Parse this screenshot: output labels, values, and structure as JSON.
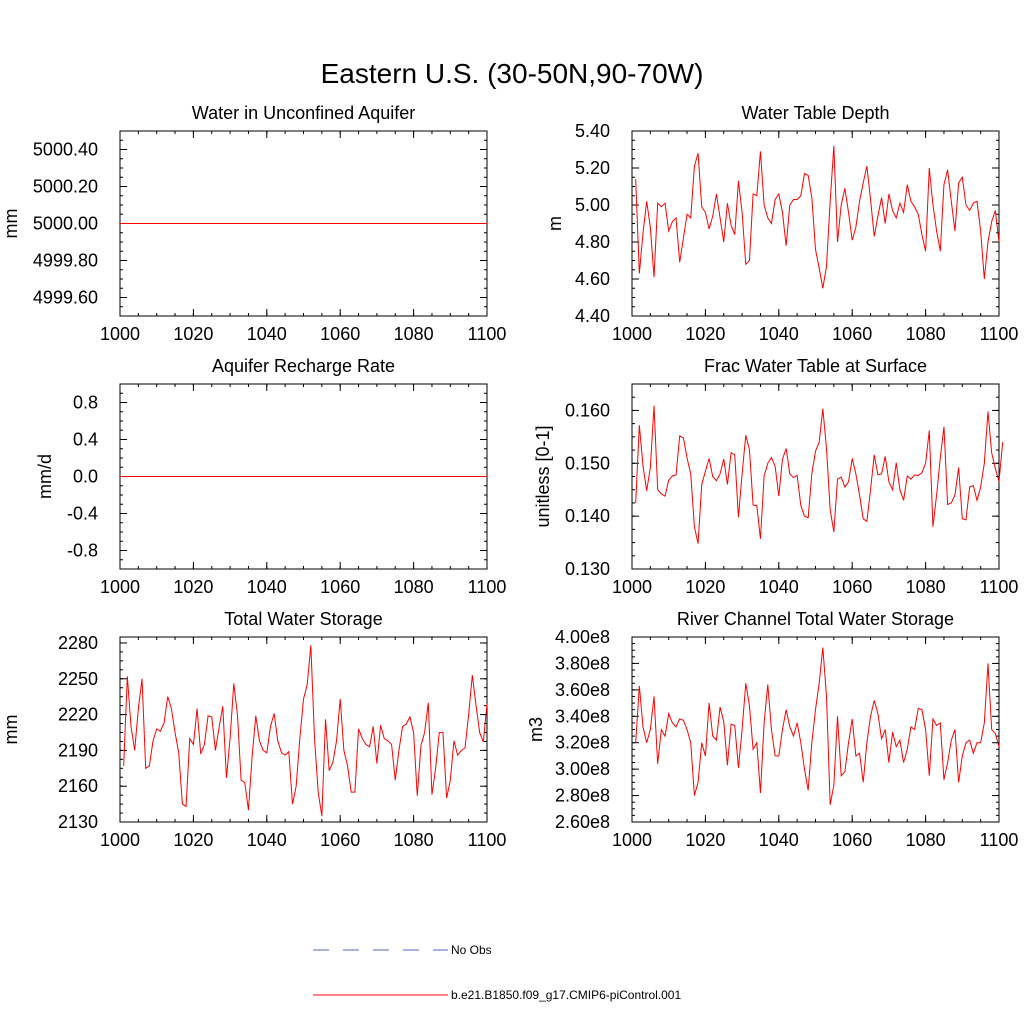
{
  "figure": {
    "title": "Eastern U.S. (30-50N,90-70W)"
  },
  "legend": {
    "placement": "bottom-center",
    "entries": [
      {
        "label": "No Obs",
        "color": "#5566cc",
        "style": "dashed"
      },
      {
        "label": "b.e21.B1850.f09_g17.CMIP6-piControl.001",
        "color": "#ff0000",
        "style": "solid"
      }
    ]
  },
  "chart_data": [
    {
      "type": "line",
      "title": "Water in Unconfined Aquifer",
      "ylabel": "mm",
      "xlim": [
        1000,
        1100
      ],
      "ylim": [
        4999.5,
        5000.5
      ],
      "xticks": [
        1000,
        1020,
        1040,
        1060,
        1080,
        1100
      ],
      "xtick_labels": [
        "1000",
        "1020",
        "1040",
        "1060",
        "1080",
        "1100"
      ],
      "yticks": [
        4999.6,
        4999.8,
        5000.0,
        5000.2,
        5000.4
      ],
      "ytick_labels": [
        "4999.60",
        "4999.80",
        "5000.00",
        "5000.20",
        "5000.40"
      ],
      "series": [
        {
          "color": "#ff0000",
          "x_start": 1001,
          "x_step": 1,
          "constant": 5000.0,
          "count": 100
        }
      ]
    },
    {
      "type": "line",
      "title": "Water Table Depth",
      "ylabel": "m",
      "xlim": [
        1000,
        1100
      ],
      "ylim": [
        4.4,
        5.4
      ],
      "xticks": [
        1000,
        1020,
        1040,
        1060,
        1080,
        1100
      ],
      "xtick_labels": [
        "1000",
        "1020",
        "1040",
        "1060",
        "1080",
        "1100"
      ],
      "yticks": [
        4.4,
        4.6,
        4.8,
        5.0,
        5.2,
        5.4
      ],
      "ytick_labels": [
        "4.40",
        "4.60",
        "4.80",
        "5.00",
        "5.20",
        "5.40"
      ],
      "series": [
        {
          "color": "#ff0000",
          "x_start": 1001,
          "x_step": 1,
          "values": [
            5.14,
            4.63,
            4.85,
            5.02,
            4.88,
            4.61,
            5.01,
            4.99,
            5.01,
            4.86,
            4.91,
            4.93,
            4.69,
            4.82,
            4.95,
            4.93,
            5.21,
            5.28,
            4.99,
            4.96,
            4.87,
            4.94,
            5.06,
            4.93,
            4.8,
            5.01,
            4.89,
            4.84,
            5.13,
            4.96,
            4.68,
            4.7,
            5.06,
            5.05,
            5.29,
            5.0,
            4.93,
            4.9,
            5.03,
            5.06,
            4.96,
            4.78,
            5.0,
            5.03,
            5.03,
            5.05,
            5.17,
            5.16,
            5.04,
            4.76,
            4.66,
            4.55,
            4.67,
            5.02,
            5.32,
            4.8,
            5.0,
            5.09,
            4.96,
            4.81,
            4.88,
            5.02,
            5.12,
            5.21,
            5.03,
            4.83,
            4.94,
            5.04,
            4.9,
            5.06,
            4.97,
            4.93,
            5.01,
            4.96,
            5.11,
            5.02,
            4.99,
            4.95,
            4.84,
            4.75,
            5.2,
            5.0,
            4.86,
            4.75,
            5.11,
            5.19,
            5.02,
            4.86,
            5.12,
            5.15,
            5.0,
            4.97,
            5.01,
            5.02,
            4.86,
            4.6,
            4.8,
            4.91,
            4.97,
            4.8
          ]
        }
      ]
    },
    {
      "type": "line",
      "title": "Aquifer Recharge Rate",
      "ylabel": "mm/d",
      "xlim": [
        1000,
        1100
      ],
      "ylim": [
        -1.0,
        1.0
      ],
      "xticks": [
        1000,
        1020,
        1040,
        1060,
        1080,
        1100
      ],
      "xtick_labels": [
        "1000",
        "1020",
        "1040",
        "1060",
        "1080",
        "1100"
      ],
      "yticks": [
        -0.8,
        -0.4,
        0.0,
        0.4,
        0.8
      ],
      "ytick_labels": [
        "-0.8",
        "-0.4",
        "0.0",
        "0.4",
        "0.8"
      ],
      "series": [
        {
          "color": "#ff0000",
          "x_start": 1001,
          "x_step": 1,
          "constant": 0.0,
          "count": 100
        }
      ]
    },
    {
      "type": "line",
      "title": "Frac Water Table at Surface",
      "ylabel": "unitless [0-1]",
      "xlim": [
        1000,
        1100
      ],
      "ylim": [
        0.13,
        0.165
      ],
      "xticks": [
        1000,
        1020,
        1040,
        1060,
        1080,
        1100
      ],
      "xtick_labels": [
        "1000",
        "1020",
        "1040",
        "1060",
        "1080",
        "1100"
      ],
      "yticks": [
        0.13,
        0.14,
        0.15,
        0.16
      ],
      "ytick_labels": [
        "0.130",
        "0.140",
        "0.150",
        "0.160"
      ],
      "series": [
        {
          "color": "#ff0000",
          "x_start": 1001,
          "x_step": 1,
          "values": [
            0.1425,
            0.1572,
            0.1495,
            0.1448,
            0.1492,
            0.1609,
            0.145,
            0.1442,
            0.1438,
            0.1468,
            0.1476,
            0.1478,
            0.1552,
            0.1548,
            0.151,
            0.148,
            0.138,
            0.1348,
            0.146,
            0.1485,
            0.1509,
            0.1475,
            0.1467,
            0.148,
            0.1508,
            0.146,
            0.152,
            0.1516,
            0.1398,
            0.148,
            0.1553,
            0.1526,
            0.1421,
            0.142,
            0.1357,
            0.1476,
            0.15,
            0.1511,
            0.1494,
            0.1438,
            0.1508,
            0.1528,
            0.148,
            0.1473,
            0.1477,
            0.142,
            0.14,
            0.1397,
            0.148,
            0.1523,
            0.154,
            0.1603,
            0.1528,
            0.1412,
            0.137,
            0.147,
            0.1474,
            0.1455,
            0.1465,
            0.1509,
            0.148,
            0.144,
            0.1395,
            0.139,
            0.145,
            0.1516,
            0.1478,
            0.148,
            0.1513,
            0.1465,
            0.145,
            0.1501,
            0.145,
            0.143,
            0.1476,
            0.147,
            0.1478,
            0.1477,
            0.1482,
            0.15,
            0.1562,
            0.138,
            0.144,
            0.151,
            0.1569,
            0.1422,
            0.1425,
            0.144,
            0.1492,
            0.1395,
            0.1393,
            0.1455,
            0.1458,
            0.143,
            0.1455,
            0.15,
            0.1598,
            0.152,
            0.149,
            0.1465,
            0.154
          ]
        }
      ]
    },
    {
      "type": "line",
      "title": "Total Water Storage",
      "ylabel": "mm",
      "xlim": [
        1000,
        1100
      ],
      "ylim": [
        2130,
        2285
      ],
      "xticks": [
        1000,
        1020,
        1040,
        1060,
        1080,
        1100
      ],
      "xtick_labels": [
        "1000",
        "1020",
        "1040",
        "1060",
        "1080",
        "1100"
      ],
      "yticks": [
        2130,
        2160,
        2190,
        2220,
        2250,
        2280
      ],
      "ytick_labels": [
        "2130",
        "2160",
        "2190",
        "2220",
        "2250",
        "2280"
      ],
      "series": [
        {
          "color": "#ff0000",
          "x_start": 1001,
          "x_step": 1,
          "values": [
            2177,
            2252,
            2210,
            2190,
            2225,
            2250,
            2175,
            2177,
            2198,
            2208,
            2206,
            2213,
            2235,
            2225,
            2205,
            2188,
            2145,
            2143,
            2200,
            2195,
            2225,
            2187,
            2195,
            2219,
            2218,
            2190,
            2209,
            2227,
            2167,
            2200,
            2246,
            2220,
            2165,
            2163,
            2140,
            2185,
            2219,
            2198,
            2190,
            2188,
            2210,
            2221,
            2198,
            2188,
            2186,
            2189,
            2145,
            2160,
            2200,
            2233,
            2245,
            2278,
            2200,
            2155,
            2135,
            2216,
            2173,
            2180,
            2198,
            2233,
            2190,
            2177,
            2155,
            2155,
            2208,
            2200,
            2195,
            2193,
            2210,
            2179,
            2211,
            2200,
            2198,
            2195,
            2165,
            2190,
            2210,
            2212,
            2218,
            2205,
            2152,
            2194,
            2205,
            2230,
            2153,
            2175,
            2205,
            2205,
            2150,
            2165,
            2198,
            2186,
            2190,
            2192,
            2220,
            2253,
            2228,
            2205,
            2197,
            2229
          ]
        }
      ]
    },
    {
      "type": "line",
      "title": "River Channel Total Water Storage",
      "ylabel": "m3",
      "xlim": [
        1000,
        1100
      ],
      "ylim": [
        260000000.0,
        400000000.0
      ],
      "xticks": [
        1000,
        1020,
        1040,
        1060,
        1080,
        1100
      ],
      "xtick_labels": [
        "1000",
        "1020",
        "1040",
        "1060",
        "1080",
        "1100"
      ],
      "yticks": [
        260000000.0,
        280000000.0,
        300000000.0,
        320000000.0,
        340000000.0,
        360000000.0,
        380000000.0,
        400000000.0
      ],
      "ytick_labels": [
        "2.60e8",
        "2.80e8",
        "3.00e8",
        "3.20e8",
        "3.40e8",
        "3.60e8",
        "3.80e8",
        "4.00e8"
      ],
      "series": [
        {
          "color": "#ff0000",
          "x_start": 1001,
          "x_step": 1,
          "values": [
            320000000.0,
            363000000.0,
            332000000.0,
            320000000.0,
            330000000.0,
            355000000.0,
            304000000.0,
            330000000.0,
            325000000.0,
            342000000.0,
            335000000.0,
            332000000.0,
            338000000.0,
            337000000.0,
            330000000.0,
            320000000.0,
            280000000.0,
            290000000.0,
            320000000.0,
            310000000.0,
            350000000.0,
            325000000.0,
            322000000.0,
            347000000.0,
            336000000.0,
            303000000.0,
            334000000.0,
            333000000.0,
            301000000.0,
            330000000.0,
            365000000.0,
            348000000.0,
            315000000.0,
            320000000.0,
            282000000.0,
            335000000.0,
            364000000.0,
            330000000.0,
            310000000.0,
            310000000.0,
            330000000.0,
            345000000.0,
            332000000.0,
            325000000.0,
            335000000.0,
            320000000.0,
            300000000.0,
            284000000.0,
            320000000.0,
            345000000.0,
            365000000.0,
            392000000.0,
            355000000.0,
            273000000.0,
            288000000.0,
            340000000.0,
            295000000.0,
            298000000.0,
            320000000.0,
            338000000.0,
            310000000.0,
            312000000.0,
            290000000.0,
            320000000.0,
            340000000.0,
            352000000.0,
            342000000.0,
            323000000.0,
            330000000.0,
            305000000.0,
            328000000.0,
            317000000.0,
            322000000.0,
            305000000.0,
            315000000.0,
            332000000.0,
            330000000.0,
            346000000.0,
            345000000.0,
            330000000.0,
            295000000.0,
            338000000.0,
            333000000.0,
            335000000.0,
            292000000.0,
            305000000.0,
            322000000.0,
            330000000.0,
            290000000.0,
            310000000.0,
            320000000.0,
            322000000.0,
            312000000.0,
            320000000.0,
            320000000.0,
            335000000.0,
            380000000.0,
            330000000.0,
            327000000.0,
            317000000.0
          ]
        }
      ]
    }
  ]
}
